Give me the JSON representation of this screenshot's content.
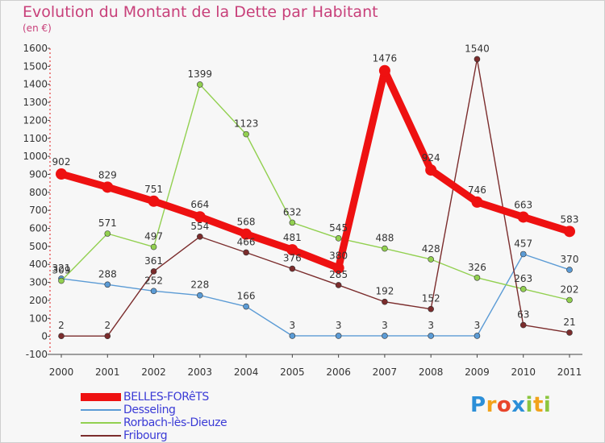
{
  "header": {
    "title": "Evolution du Montant de la Dette par Habitant",
    "unit": "(en €)"
  },
  "brand": {
    "letters": [
      "P",
      "r",
      "o",
      "x",
      "i",
      "t",
      "i"
    ],
    "colors": [
      "#2c8fd8",
      "#f2a21b",
      "#e8452b",
      "#2c8fd8",
      "#8cc63f",
      "#f2a21b",
      "#8cc63f"
    ]
  },
  "chart_data": {
    "type": "line",
    "title": "Evolution du Montant de la Dette par Habitant",
    "subtitle": "(en €)",
    "xlabel": "",
    "ylabel": "",
    "x": [
      2000,
      2001,
      2002,
      2003,
      2004,
      2005,
      2006,
      2007,
      2008,
      2009,
      2010,
      2011
    ],
    "ylim": [
      -100,
      1600
    ],
    "yticks": [
      -100,
      0,
      100,
      200,
      300,
      400,
      500,
      600,
      700,
      800,
      900,
      1000,
      1100,
      1200,
      1300,
      1400,
      1500,
      1600
    ],
    "grid": false,
    "legend_position": "bottom-left",
    "series": [
      {
        "name": "BELLES-FORêTS",
        "color": "#ee1111",
        "emphasis": true,
        "values": [
          902,
          829,
          751,
          664,
          568,
          481,
          380,
          1476,
          924,
          746,
          663,
          583
        ]
      },
      {
        "name": "Desseling",
        "color": "#5b9bd5",
        "values": [
          321,
          288,
          252,
          228,
          166,
          3,
          3,
          3,
          3,
          3,
          457,
          370
        ]
      },
      {
        "name": "Rorbach-lès-Dieuze",
        "color": "#92d050",
        "values": [
          309,
          571,
          497,
          1399,
          1123,
          632,
          545,
          488,
          428,
          326,
          263,
          202
        ]
      },
      {
        "name": "Fribourg",
        "color": "#7b2c2c",
        "values": [
          2,
          2,
          361,
          554,
          466,
          376,
          285,
          192,
          152,
          1540,
          63,
          21
        ]
      }
    ]
  }
}
